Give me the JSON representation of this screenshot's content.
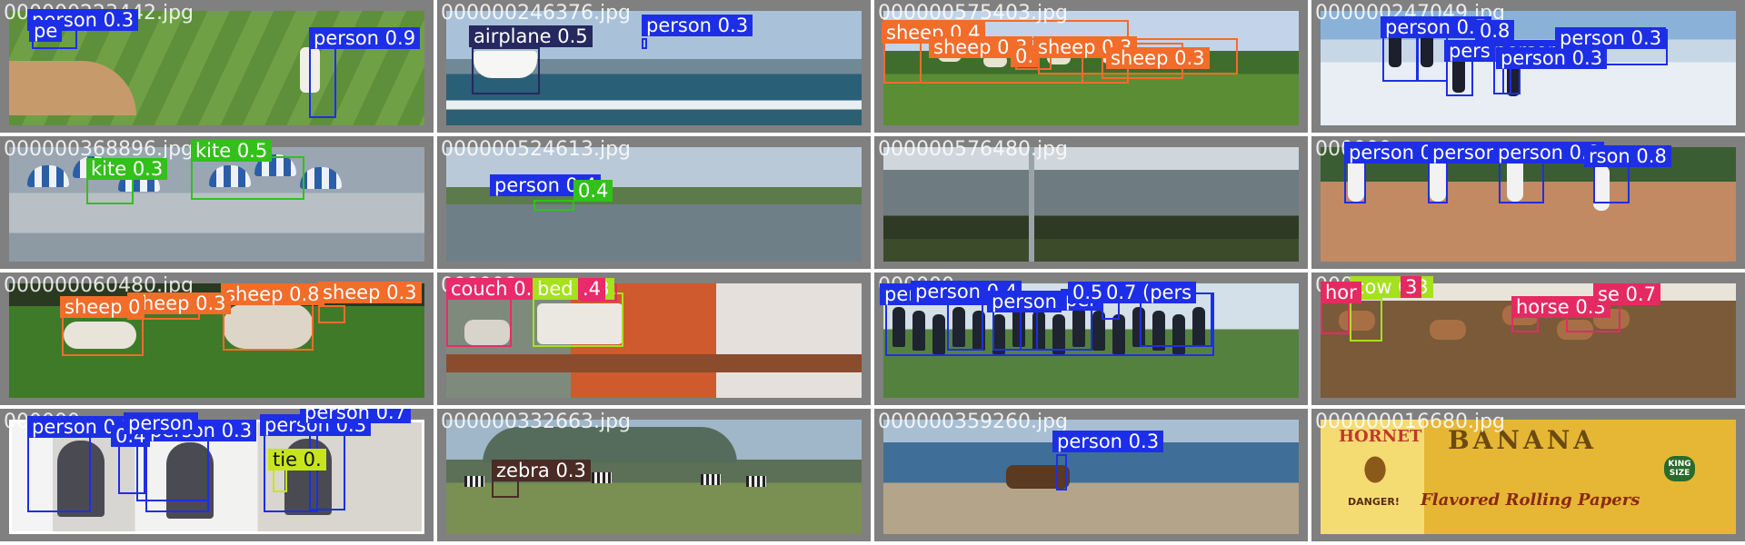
{
  "colors": {
    "person": "#1d2fe6",
    "airplane": "#26295f",
    "sheep": "#f26c2a",
    "kite": "#33c01b",
    "couch": "#ea2a6a",
    "bed": "#a6e11d",
    "cow": "#a6e11d",
    "horse": "#e52a62",
    "zebra": "#4a2b26",
    "tie": "#c6e61b"
  },
  "tiles": [
    {
      "file": "000000223442.jpg",
      "bg": "baseball_field",
      "dets": [
        {
          "label": "person 0.3",
          "cls": "person"
        },
        {
          "label": "person 0.9",
          "cls": "person"
        },
        {
          "label": "pe",
          "cls": "person"
        }
      ]
    },
    {
      "file": "000000246376.jpg",
      "bg": "lake_boat",
      "dets": [
        {
          "label": "airplane 0.5",
          "cls": "airplane"
        },
        {
          "label": "person 0.3",
          "cls": "person"
        }
      ]
    },
    {
      "file": "000000575403.jpg",
      "bg": "sheep_field",
      "dets": [
        {
          "label": "sheep 0.4",
          "cls": "sheep"
        },
        {
          "label": "sheep 0.3",
          "cls": "sheep"
        },
        {
          "label": "sheep 0.3",
          "cls": "sheep"
        },
        {
          "label": "sheep 0.3",
          "cls": "sheep"
        },
        {
          "label": "0.",
          "cls": "sheep"
        }
      ]
    },
    {
      "file": "000000247049.jpg",
      "bg": "snow",
      "dets": [
        {
          "label": "person 0.5",
          "cls": "person"
        },
        {
          "label": "0.8",
          "cls": "person"
        },
        {
          "label": "person",
          "cls": "person"
        },
        {
          "label": "person",
          "cls": "person"
        },
        {
          "label": "person 0.3",
          "cls": "person"
        },
        {
          "label": "person 0.3",
          "cls": "person"
        }
      ]
    },
    {
      "file": "000000368896.jpg",
      "bg": "umbrellas",
      "dets": [
        {
          "label": "kite 0.5",
          "cls": "kite"
        },
        {
          "label": "kite 0.3",
          "cls": "kite"
        }
      ]
    },
    {
      "file": "000000524613.jpg",
      "bg": "lake_pano",
      "dets": [
        {
          "label": "person 0.4",
          "cls": "person"
        },
        {
          "label": "0.4",
          "cls": "kite"
        }
      ]
    },
    {
      "file": "000000576480.jpg",
      "bg": "trees_pano",
      "dets": []
    },
    {
      "file": "000000",
      "bg": "baseball_seq",
      "dets": [
        {
          "label": "person 0.9",
          "cls": "person"
        },
        {
          "label": "person 0",
          "cls": "person"
        },
        {
          "label": "person 0.8",
          "cls": "person"
        },
        {
          "label": "rson 0.8",
          "cls": "person"
        }
      ]
    },
    {
      "file": "000000060480.jpg",
      "bg": "grass_sheep",
      "dets": [
        {
          "label": "sheep 0.8",
          "cls": "sheep"
        },
        {
          "label": "sheep 0.3",
          "cls": "sheep"
        },
        {
          "label": "sheep 0",
          "cls": "sheep"
        },
        {
          "label": "sheep 0.3",
          "cls": "sheep"
        }
      ]
    },
    {
      "file": "000000",
      "bg": "living_room",
      "dets": [
        {
          "label": "couch 0.4",
          "cls": "couch"
        },
        {
          "label": "bed 0.3",
          "cls": "bed"
        },
        {
          "label": ".4",
          "cls": "couch"
        }
      ]
    },
    {
      "file": "000000",
      "bg": "crowd",
      "dets": [
        {
          "label": "person 0.3",
          "cls": "person"
        },
        {
          "label": "person 0.4",
          "cls": "person"
        },
        {
          "label": "person",
          "cls": "person"
        },
        {
          "label": "per",
          "cls": "person"
        },
        {
          "label": "0.5",
          "cls": "person"
        },
        {
          "label": "0.7",
          "cls": "person"
        },
        {
          "label": "(pers",
          "cls": "person"
        }
      ]
    },
    {
      "file": "000000",
      "bg": "horses_barn",
      "dets": [
        {
          "label": "cow 0.3",
          "cls": "cow"
        },
        {
          "label": "horse 0.3",
          "cls": "horse"
        },
        {
          "label": "se 0.7",
          "cls": "horse"
        },
        {
          "label": "hor",
          "cls": "horse"
        },
        {
          "label": "3",
          "cls": "horse"
        }
      ]
    },
    {
      "file": "000000",
      "bg": "women_phone",
      "dets": [
        {
          "label": "person 0.3",
          "cls": "person"
        },
        {
          "label": "person 0.3",
          "cls": "person"
        },
        {
          "label": "person 0.3",
          "cls": "person"
        },
        {
          "label": "person 0.7",
          "cls": "person"
        },
        {
          "label": "0.4",
          "cls": "person"
        },
        {
          "label": "person",
          "cls": "person"
        },
        {
          "label": "tie 0.",
          "cls": "tie"
        }
      ]
    },
    {
      "file": "000000332663.jpg",
      "bg": "savanna",
      "dets": [
        {
          "label": "zebra 0.3",
          "cls": "zebra"
        }
      ]
    },
    {
      "file": "000000359260.jpg",
      "bg": "beach_cart",
      "dets": [
        {
          "label": "person 0.3",
          "cls": "person"
        }
      ]
    },
    {
      "file": "000000016680.jpg",
      "bg": "banana_ad",
      "dets": [],
      "ad": {
        "brand": "HORNET",
        "danger": "DANGER!",
        "title": "BANANA",
        "sub": "Flavored Rolling Papers",
        "badge": "KING SIZE"
      }
    }
  ]
}
